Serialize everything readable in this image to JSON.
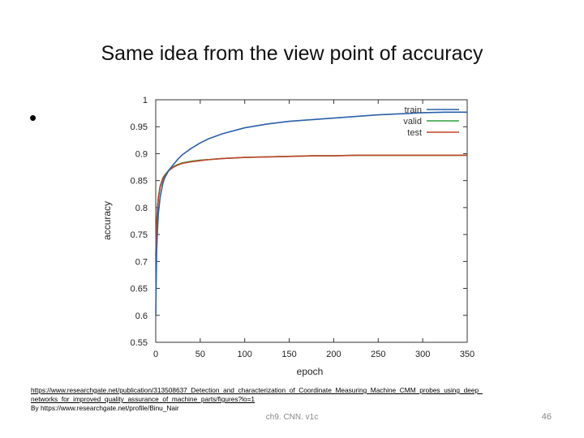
{
  "slide": {
    "title": "Same idea from the view point of accuracy",
    "bullet": "•",
    "source_url": "https://www.researchgate.net/publication/313508637_Detection_and_characterization_of_Coordinate_Measuring_Machine_CMM_probes_using_deep_networks_for_improved_quality_assurance_of_machine_parts/figures?lo=1",
    "source_by": "By https://www.researchgate.net/profile/Binu_Nair",
    "footer": "ch9. CNN. v1c",
    "page_number": "46"
  },
  "chart_data": {
    "type": "line",
    "title": "",
    "xlabel": "epoch",
    "ylabel": "accuracy",
    "xlim": [
      0,
      350
    ],
    "ylim": [
      0.55,
      1.0
    ],
    "xticks": [
      0,
      50,
      100,
      150,
      200,
      250,
      300,
      350
    ],
    "yticks": [
      0.55,
      0.6,
      0.65,
      0.7,
      0.75,
      0.8,
      0.85,
      0.9,
      0.95,
      1.0
    ],
    "legend_position": "top-right",
    "grid": false,
    "series": [
      {
        "name": "train",
        "color": "#2a5fa8",
        "x": [
          0,
          1,
          2,
          3,
          5,
          8,
          10,
          15,
          20,
          25,
          30,
          40,
          50,
          60,
          75,
          100,
          125,
          150,
          175,
          200,
          225,
          250,
          275,
          300,
          325,
          350
        ],
        "y": [
          0.6,
          0.72,
          0.76,
          0.79,
          0.82,
          0.845,
          0.855,
          0.87,
          0.88,
          0.89,
          0.898,
          0.91,
          0.92,
          0.928,
          0.937,
          0.948,
          0.955,
          0.96,
          0.963,
          0.966,
          0.969,
          0.972,
          0.974,
          0.976,
          0.977,
          0.977
        ]
      },
      {
        "name": "valid",
        "color": "#2e9e3e",
        "x": [
          0,
          1,
          2,
          3,
          5,
          8,
          10,
          15,
          20,
          25,
          30,
          40,
          50,
          60,
          75,
          100,
          125,
          150,
          175,
          200,
          225,
          250,
          275,
          300,
          325,
          350
        ],
        "y": [
          0.71,
          0.77,
          0.8,
          0.82,
          0.84,
          0.855,
          0.86,
          0.87,
          0.876,
          0.88,
          0.883,
          0.886,
          0.888,
          0.889,
          0.891,
          0.893,
          0.894,
          0.895,
          0.896,
          0.896,
          0.897,
          0.897,
          0.897,
          0.897,
          0.897,
          0.897
        ]
      },
      {
        "name": "test",
        "color": "#c0442a",
        "x": [
          0,
          1,
          2,
          3,
          5,
          8,
          10,
          15,
          20,
          25,
          30,
          40,
          50,
          60,
          75,
          100,
          125,
          150,
          175,
          200,
          225,
          250,
          275,
          300,
          325,
          350
        ],
        "y": [
          0.7,
          0.765,
          0.798,
          0.818,
          0.838,
          0.853,
          0.859,
          0.869,
          0.875,
          0.879,
          0.882,
          0.885,
          0.887,
          0.889,
          0.891,
          0.893,
          0.894,
          0.895,
          0.896,
          0.896,
          0.897,
          0.897,
          0.897,
          0.897,
          0.897,
          0.897
        ]
      }
    ]
  }
}
